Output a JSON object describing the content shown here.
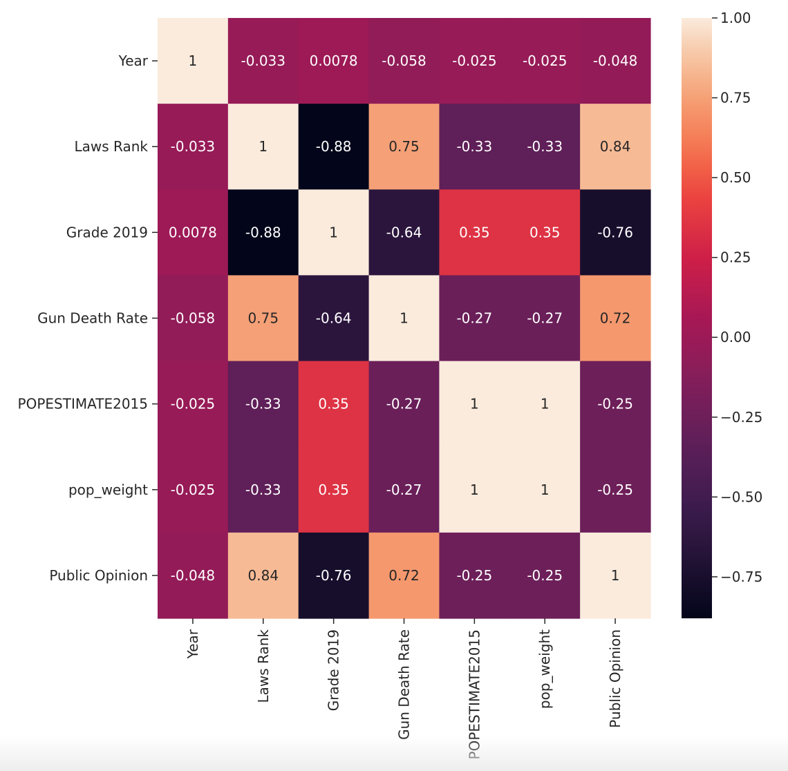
{
  "chart_data": {
    "type": "heatmap",
    "title": "",
    "row_labels": [
      "Year",
      "Laws Rank",
      "Grade 2019",
      "Gun Death Rate",
      "POPESTIMATE2015",
      "pop_weight",
      "Public Opinion"
    ],
    "col_labels": [
      "Year",
      "Laws Rank",
      "Grade 2019",
      "Gun Death Rate",
      "POPESTIMATE2015",
      "pop_weight",
      "Public Opinion"
    ],
    "values": [
      [
        1,
        -0.033,
        0.0078,
        -0.058,
        -0.025,
        -0.025,
        -0.048
      ],
      [
        -0.033,
        1,
        -0.88,
        0.75,
        -0.33,
        -0.33,
        0.84
      ],
      [
        0.0078,
        -0.88,
        1,
        -0.64,
        0.35,
        0.35,
        -0.76
      ],
      [
        -0.058,
        0.75,
        -0.64,
        1,
        -0.27,
        -0.27,
        0.72
      ],
      [
        -0.025,
        -0.33,
        0.35,
        -0.27,
        1,
        1,
        -0.25
      ],
      [
        -0.025,
        -0.33,
        0.35,
        -0.27,
        1,
        1,
        -0.25
      ],
      [
        -0.048,
        0.84,
        -0.76,
        0.72,
        -0.25,
        -0.25,
        1
      ]
    ],
    "annotations": [
      [
        "1",
        "-0.033",
        "0.0078",
        "-0.058",
        "-0.025",
        "-0.025",
        "-0.048"
      ],
      [
        "-0.033",
        "1",
        "-0.88",
        "0.75",
        "-0.33",
        "-0.33",
        "0.84"
      ],
      [
        "0.0078",
        "-0.88",
        "1",
        "-0.64",
        "0.35",
        "0.35",
        "-0.76"
      ],
      [
        "-0.058",
        "0.75",
        "-0.64",
        "1",
        "-0.27",
        "-0.27",
        "0.72"
      ],
      [
        "-0.025",
        "-0.33",
        "0.35",
        "-0.27",
        "1",
        "1",
        "-0.25"
      ],
      [
        "-0.025",
        "-0.33",
        "0.35",
        "-0.27",
        "1",
        "1",
        "-0.25"
      ],
      [
        "-0.048",
        "0.84",
        "-0.76",
        "0.72",
        "-0.25",
        "-0.25",
        "1"
      ]
    ],
    "colormap": "rocket",
    "vmin": -0.88,
    "vmax": 1.0,
    "colorbar": {
      "ticks": [
        1.0,
        0.75,
        0.5,
        0.25,
        0.0,
        -0.25,
        -0.5,
        -0.75
      ],
      "tick_labels": [
        "1.00",
        "0.75",
        "0.50",
        "0.25",
        "0.00",
        "−0.25",
        "−0.50",
        "−0.75"
      ],
      "placement": "right"
    },
    "colors": {
      "low": "#03051a",
      "high": "#faebdd",
      "text_on_light": "#262626",
      "text_on_dark": "#ffffff",
      "axis_text": "#262626"
    }
  }
}
